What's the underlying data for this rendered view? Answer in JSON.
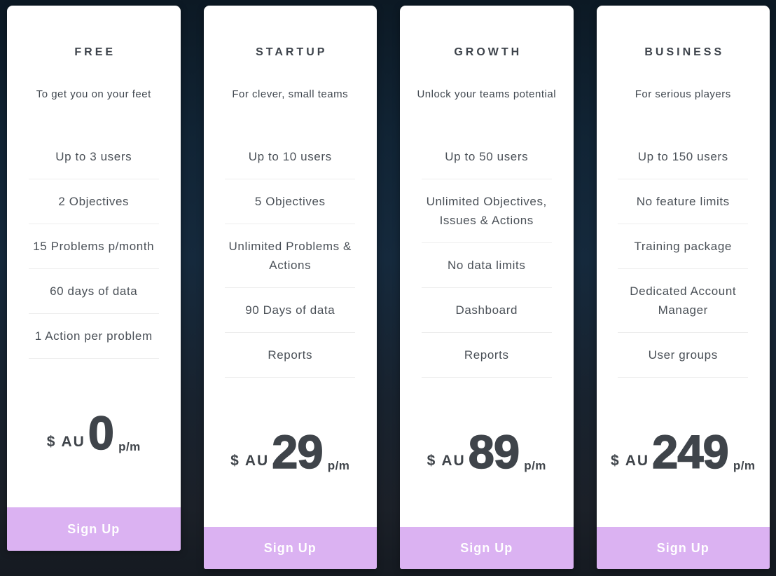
{
  "colors": {
    "background_top": "#0c1924",
    "background_mid": "#15293c",
    "background_bottom": "#151a21",
    "card_background": "#ffffff",
    "title_text": "#3d434b",
    "feature_text": "#4a5057",
    "price_text": "#3f444a",
    "divider": "#ededed",
    "button_background": "#dbb2f2",
    "button_text": "#ffffff"
  },
  "cards": [
    {
      "title": "FREE",
      "subtitle": "To get you on your feet",
      "features": [
        "Up to 3 users",
        "2 Objectives",
        "15 Problems p/month",
        "60 days of data",
        "1 Action per problem"
      ],
      "price": {
        "symbol": "$",
        "code": "AU",
        "amount": "0",
        "period": "p/m"
      },
      "cta": "Sign Up"
    },
    {
      "title": "STARTUP",
      "subtitle": "For clever, small teams",
      "features": [
        "Up to 10 users",
        "5 Objectives",
        "Unlimited Problems & Actions",
        "90 Days of data",
        "Reports"
      ],
      "price": {
        "symbol": "$",
        "code": "AU",
        "amount": "29",
        "period": "p/m"
      },
      "cta": "Sign Up"
    },
    {
      "title": "GROWTH",
      "subtitle": "Unlock your teams potential",
      "features": [
        "Up to 50 users",
        "Unlimited Objectives, Issues & Actions",
        "No data limits",
        "Dashboard",
        "Reports"
      ],
      "price": {
        "symbol": "$",
        "code": "AU",
        "amount": "89",
        "period": "p/m"
      },
      "cta": "Sign Up"
    },
    {
      "title": "BUSINESS",
      "subtitle": "For serious players",
      "features": [
        "Up to 150 users",
        "No feature limits",
        "Training package",
        "Dedicated Account Manager",
        "User groups"
      ],
      "price": {
        "symbol": "$",
        "code": "AU",
        "amount": "249",
        "period": "p/m"
      },
      "cta": "Sign Up"
    }
  ]
}
